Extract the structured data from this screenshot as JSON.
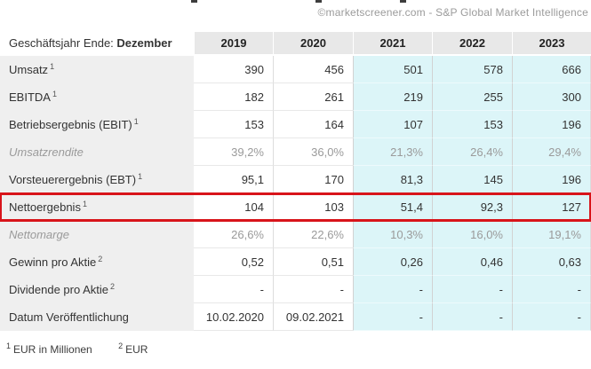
{
  "attribution": "©marketscreener.com - S&P Global Market Intelligence",
  "table": {
    "corner": {
      "prefix": "Geschäftsjahr Ende: ",
      "bold": "Dezember"
    },
    "years": [
      "2019",
      "2020",
      "2021",
      "2022",
      "2023"
    ],
    "estimate_start_index": 2,
    "rows": [
      {
        "label": "Umsatz",
        "sup": "1",
        "muted": false,
        "highlight": false,
        "values": [
          "390",
          "456",
          "501",
          "578",
          "666"
        ]
      },
      {
        "label": "EBITDA",
        "sup": "1",
        "muted": false,
        "highlight": false,
        "values": [
          "182",
          "261",
          "219",
          "255",
          "300"
        ]
      },
      {
        "label": "Betriebsergebnis (EBIT)",
        "sup": "1",
        "muted": false,
        "highlight": false,
        "values": [
          "153",
          "164",
          "107",
          "153",
          "196"
        ]
      },
      {
        "label": "Umsatzrendite",
        "sup": "",
        "muted": true,
        "highlight": false,
        "values": [
          "39,2%",
          "36,0%",
          "21,3%",
          "26,4%",
          "29,4%"
        ]
      },
      {
        "label": "Vorsteuerergebnis (EBT)",
        "sup": "1",
        "muted": false,
        "highlight": false,
        "values": [
          "95,1",
          "170",
          "81,3",
          "145",
          "196"
        ]
      },
      {
        "label": "Nettoergebnis",
        "sup": "1",
        "muted": false,
        "highlight": true,
        "values": [
          "104",
          "103",
          "51,4",
          "92,3",
          "127"
        ]
      },
      {
        "label": "Nettomarge",
        "sup": "",
        "muted": true,
        "highlight": false,
        "values": [
          "26,6%",
          "22,6%",
          "10,3%",
          "16,0%",
          "19,1%"
        ]
      },
      {
        "label": "Gewinn pro Aktie",
        "sup": "2",
        "muted": false,
        "highlight": false,
        "values": [
          "0,52",
          "0,51",
          "0,26",
          "0,46",
          "0,63"
        ]
      },
      {
        "label": "Dividende pro Aktie",
        "sup": "2",
        "muted": false,
        "highlight": false,
        "values": [
          "-",
          "-",
          "-",
          "-",
          "-"
        ]
      },
      {
        "label": "Datum Veröffentlichung",
        "sup": "",
        "muted": false,
        "highlight": false,
        "values": [
          "10.02.2020",
          "09.02.2021",
          "-",
          "-",
          "-"
        ]
      }
    ]
  },
  "footnotes": [
    {
      "sup": "1",
      "text": "EUR in Millionen"
    },
    {
      "sup": "2",
      "text": "EUR"
    }
  ],
  "colors": {
    "estimate_bg": "#dcf5f8",
    "highlight_border": "#d8141a",
    "header_bg": "#e8e8e8",
    "label_bg": "#efefef"
  },
  "chart_data": {
    "type": "table",
    "title": "Geschäftsjahr Ende: Dezember",
    "categories": [
      "2019",
      "2020",
      "2021",
      "2022",
      "2023"
    ],
    "estimate_columns": [
      "2021",
      "2022",
      "2023"
    ],
    "series": [
      {
        "name": "Umsatz",
        "unit": "EUR Mio",
        "values": [
          390,
          456,
          501,
          578,
          666
        ]
      },
      {
        "name": "EBITDA",
        "unit": "EUR Mio",
        "values": [
          182,
          261,
          219,
          255,
          300
        ]
      },
      {
        "name": "Betriebsergebnis (EBIT)",
        "unit": "EUR Mio",
        "values": [
          153,
          164,
          107,
          153,
          196
        ]
      },
      {
        "name": "Umsatzrendite",
        "unit": "%",
        "values": [
          39.2,
          36.0,
          21.3,
          26.4,
          29.4
        ]
      },
      {
        "name": "Vorsteuerergebnis (EBT)",
        "unit": "EUR Mio",
        "values": [
          95.1,
          170,
          81.3,
          145,
          196
        ]
      },
      {
        "name": "Nettoergebnis",
        "unit": "EUR Mio",
        "highlighted": true,
        "values": [
          104,
          103,
          51.4,
          92.3,
          127
        ]
      },
      {
        "name": "Nettomarge",
        "unit": "%",
        "values": [
          26.6,
          22.6,
          10.3,
          16.0,
          19.1
        ]
      },
      {
        "name": "Gewinn pro Aktie",
        "unit": "EUR",
        "values": [
          0.52,
          0.51,
          0.26,
          0.46,
          0.63
        ]
      },
      {
        "name": "Dividende pro Aktie",
        "unit": "EUR",
        "values": [
          null,
          null,
          null,
          null,
          null
        ]
      },
      {
        "name": "Datum Veröffentlichung",
        "unit": "",
        "values": [
          "10.02.2020",
          "09.02.2021",
          null,
          null,
          null
        ]
      }
    ]
  }
}
